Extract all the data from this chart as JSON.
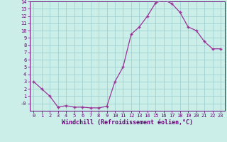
{
  "x": [
    0,
    1,
    2,
    3,
    4,
    5,
    6,
    7,
    8,
    9,
    10,
    11,
    12,
    13,
    14,
    15,
    16,
    17,
    18,
    19,
    20,
    21,
    22,
    23
  ],
  "y": [
    3.0,
    2.0,
    1.0,
    -0.5,
    -0.3,
    -0.5,
    -0.5,
    -0.6,
    -0.6,
    -0.4,
    3.0,
    5.0,
    9.5,
    10.5,
    12.0,
    13.8,
    14.2,
    13.7,
    12.5,
    10.5,
    10.0,
    8.5,
    7.5,
    7.5
  ],
  "line_color": "#993399",
  "marker": "+",
  "marker_size": 3.5,
  "marker_linewidth": 1.0,
  "linewidth": 0.9,
  "xlabel": "Windchill (Refroidissement éolien,°C)",
  "xlim": [
    -0.5,
    23.5
  ],
  "ylim": [
    -1.0,
    14.0
  ],
  "ytick_labels": [
    "14",
    "13",
    "12",
    "11",
    "10",
    "9",
    "8",
    "7",
    "6",
    "5",
    "4",
    "3",
    "2",
    "1",
    "-0"
  ],
  "ytick_values": [
    14,
    13,
    12,
    11,
    10,
    9,
    8,
    7,
    6,
    5,
    4,
    3,
    2,
    1,
    0
  ],
  "xtick_values": [
    0,
    1,
    2,
    3,
    4,
    5,
    6,
    7,
    8,
    9,
    10,
    11,
    12,
    13,
    14,
    15,
    16,
    17,
    18,
    19,
    20,
    21,
    22,
    23
  ],
  "xtick_labels": [
    "0",
    "1",
    "2",
    "3",
    "4",
    "5",
    "6",
    "7",
    "8",
    "9",
    "10",
    "11",
    "12",
    "13",
    "14",
    "15",
    "16",
    "17",
    "18",
    "19",
    "20",
    "21",
    "22",
    "23"
  ],
  "bg_color": "#cceee8",
  "grid_color": "#99cccc",
  "tick_label_color": "#660077",
  "xlabel_color": "#660077",
  "spine_color": "#660077",
  "tick_fontsize": 5.0,
  "xlabel_fontsize": 6.0
}
